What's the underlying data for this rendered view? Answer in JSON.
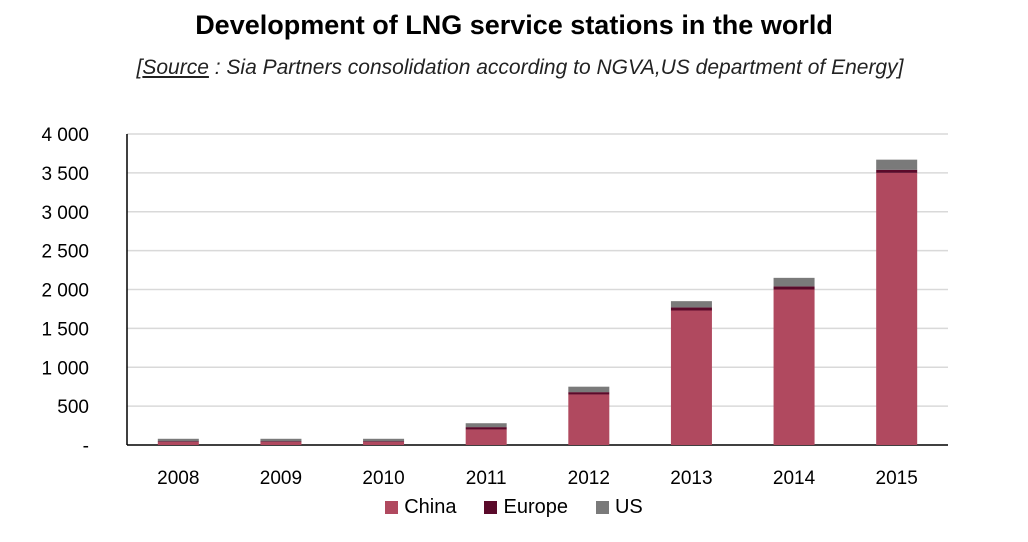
{
  "title": "Development of LNG service stations in the world",
  "subtitle": {
    "open_bracket": "[",
    "source_word": "Source",
    "rest": " : Sia Partners consolidation according to NGVA,US department of Energy]"
  },
  "colors": {
    "China": "#b0495f",
    "Europe": "#5a0a2a",
    "US": "#7a7a7a",
    "grid": "#d9d9d9",
    "axis": "#000000"
  },
  "chart_data": {
    "type": "bar",
    "stacked": true,
    "title": "Development of LNG service stations in the world",
    "xlabel": "",
    "ylabel": "",
    "categories": [
      "2008",
      "2009",
      "2010",
      "2011",
      "2012",
      "2013",
      "2014",
      "2015"
    ],
    "series": [
      {
        "name": "China",
        "values": [
          40,
          40,
          40,
          200,
          650,
          1730,
          2000,
          3500
        ]
      },
      {
        "name": "Europe",
        "values": [
          10,
          10,
          10,
          30,
          30,
          40,
          40,
          40
        ]
      },
      {
        "name": "US",
        "values": [
          30,
          30,
          30,
          50,
          70,
          80,
          110,
          130
        ]
      }
    ],
    "ylim": [
      0,
      4000
    ],
    "yticks": [
      0,
      500,
      1000,
      1500,
      2000,
      2500,
      3000,
      3500,
      4000
    ],
    "ytick_labels": [
      "-",
      "500",
      "1 000",
      "1 500",
      "2 000",
      "2 500",
      "3 000",
      "3 500",
      "4 000"
    ],
    "grid": true,
    "legend_position": "bottom"
  }
}
